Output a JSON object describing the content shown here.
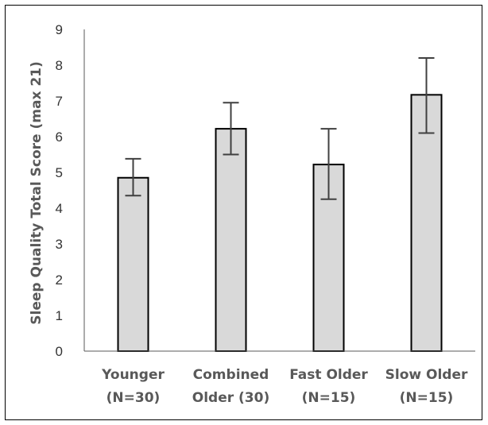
{
  "chart_data": {
    "type": "bar",
    "title": "",
    "xlabel": "",
    "ylabel": "Sleep Quality Total Score (max 21)",
    "ylim": [
      0,
      9
    ],
    "yticks": [
      0,
      1,
      2,
      3,
      4,
      5,
      6,
      7,
      8,
      9
    ],
    "grid": false,
    "legend": "none",
    "categories": [
      [
        "Younger",
        "(N=30)"
      ],
      [
        "Combined",
        "Older (30)"
      ],
      [
        "Fast Older",
        "(N=15)"
      ],
      [
        "Slow Older",
        "(N=15)"
      ]
    ],
    "values": [
      4.85,
      6.22,
      5.22,
      7.17
    ],
    "error_low": [
      4.35,
      5.5,
      4.25,
      6.1
    ],
    "error_high": [
      5.38,
      6.95,
      6.22,
      8.2
    ],
    "colors": {
      "bar_fill": "#d9d9d9",
      "bar_stroke": "#000000",
      "error_bar": "#404040",
      "axis": "#595959"
    }
  }
}
